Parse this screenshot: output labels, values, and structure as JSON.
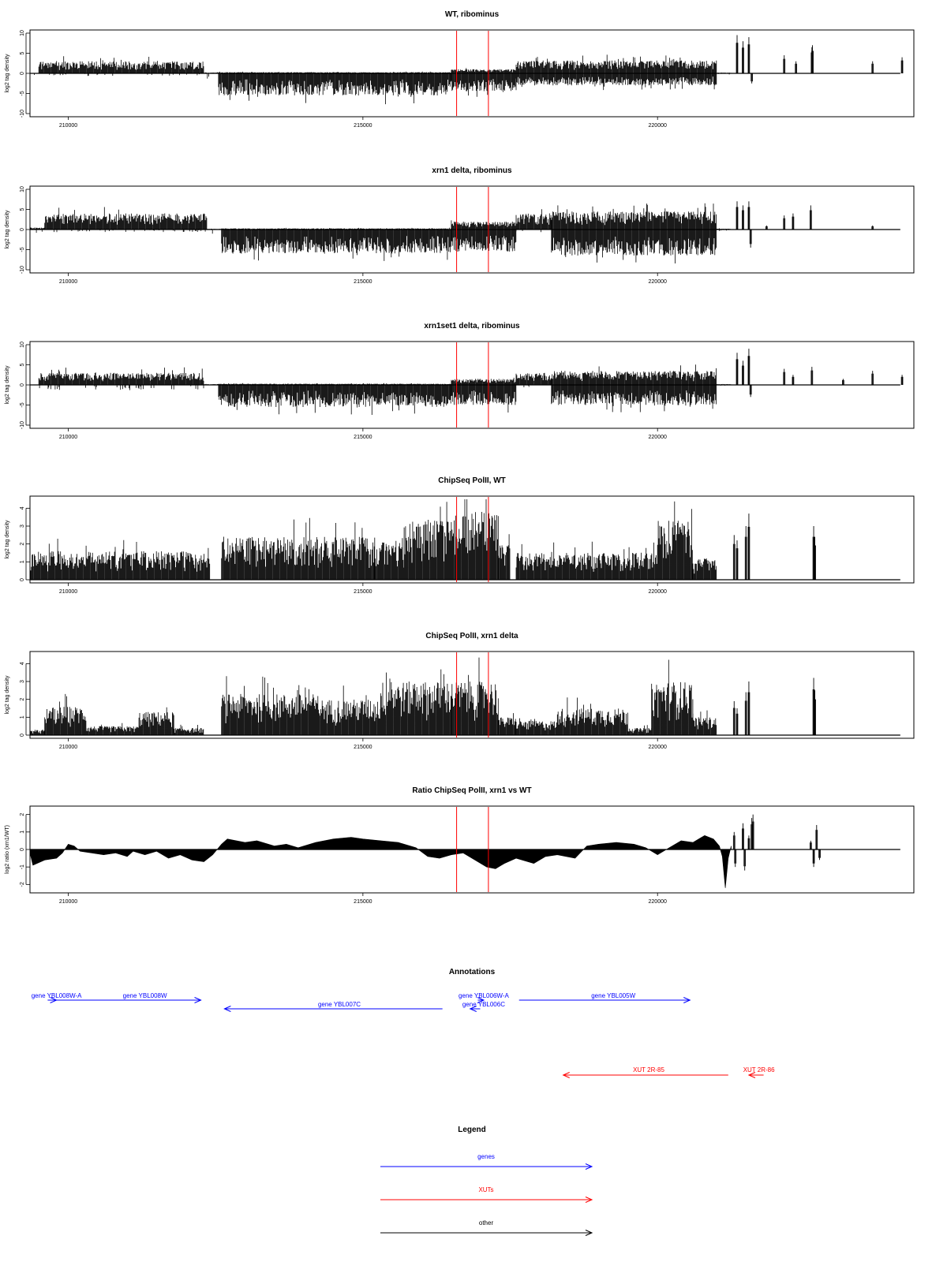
{
  "palette": {
    "gene": "#0000ff",
    "xut": "#ff0000",
    "other": "#000000",
    "marker": "#ff0000"
  },
  "chart_data": [
    {
      "type": "bar",
      "title": "WT, ribominus",
      "ylabel": "log2 tag density",
      "xlim": [
        209350,
        224350
      ],
      "ylim": [
        -10,
        10
      ],
      "yticks": [
        "-10",
        "-5",
        "0",
        "5",
        "10"
      ],
      "xticks": [
        "210000",
        "215000",
        "220000"
      ],
      "markers_x": [
        216590,
        217130
      ],
      "grid": false,
      "segments": [
        {
          "x": [
            209350,
            209500
          ],
          "pos": 0,
          "neg": 0.5
        },
        {
          "x": [
            209500,
            212300
          ],
          "pos": 3.0,
          "neg": 0.5
        },
        {
          "x": [
            212300,
            212550
          ],
          "pos": 0.2,
          "neg": 1.0
        },
        {
          "x": [
            212550,
            216500
          ],
          "pos": 0.3,
          "neg": -5.5
        },
        {
          "x": [
            216500,
            217600
          ],
          "pos": 1.0,
          "neg": -4.5
        },
        {
          "x": [
            217600,
            221000
          ],
          "pos": 3.2,
          "neg": -3.0
        },
        {
          "x": [
            221000,
            221250
          ],
          "pos": 0.2,
          "neg": 0.3
        }
      ],
      "peaks": [
        [
          221350,
          9.5
        ],
        [
          221450,
          8.0
        ],
        [
          221550,
          9.0
        ],
        [
          221600,
          -2.5
        ],
        [
          222150,
          4.5
        ],
        [
          222350,
          3.0
        ],
        [
          222620,
          6.5
        ],
        [
          222630,
          7.0
        ],
        [
          223650,
          3.0
        ],
        [
          224150,
          4.0
        ]
      ]
    },
    {
      "type": "bar",
      "title": "xrn1 delta, ribominus",
      "ylabel": "log2 tag density",
      "xlim": [
        209350,
        224350
      ],
      "ylim": [
        -10,
        10
      ],
      "yticks": [
        "-10",
        "-5",
        "0",
        "5",
        "10"
      ],
      "xticks": [
        "210000",
        "215000",
        "220000"
      ],
      "markers_x": [
        216590,
        217130
      ],
      "grid": false,
      "segments": [
        {
          "x": [
            209350,
            209600
          ],
          "pos": 0.5,
          "neg": 1.5
        },
        {
          "x": [
            209600,
            212350
          ],
          "pos": 4.0,
          "neg": 0.5
        },
        {
          "x": [
            212350,
            212600
          ],
          "pos": 0.2,
          "neg": 2.0
        },
        {
          "x": [
            212600,
            216500
          ],
          "pos": 0.3,
          "neg": -6.0
        },
        {
          "x": [
            216500,
            217600
          ],
          "pos": 2.0,
          "neg": -5.5
        },
        {
          "x": [
            217600,
            218200
          ],
          "pos": 4.0,
          "neg": 0.5
        },
        {
          "x": [
            218200,
            221000
          ],
          "pos": 4.5,
          "neg": -6.5
        },
        {
          "x": [
            221000,
            221250
          ],
          "pos": 0.2,
          "neg": 0.3
        }
      ],
      "peaks": [
        [
          221350,
          7.0
        ],
        [
          221450,
          6.0
        ],
        [
          221550,
          7.0
        ],
        [
          221580,
          -4.5
        ],
        [
          221850,
          1.0
        ],
        [
          222150,
          3.5
        ],
        [
          222300,
          4.0
        ],
        [
          222600,
          6.0
        ],
        [
          223650,
          1.0
        ]
      ]
    },
    {
      "type": "bar",
      "title": "xrn1set1 delta, ribominus",
      "ylabel": "log2 tag density",
      "xlim": [
        209350,
        224350
      ],
      "ylim": [
        -10,
        10
      ],
      "yticks": [
        "-10",
        "-5",
        "0",
        "5",
        "10"
      ],
      "xticks": [
        "210000",
        "215000",
        "220000"
      ],
      "markers_x": [
        216590,
        217130
      ],
      "grid": false,
      "segments": [
        {
          "x": [
            209350,
            209500
          ],
          "pos": 0,
          "neg": 0.3
        },
        {
          "x": [
            209500,
            212300
          ],
          "pos": 3.0,
          "neg": 1.0
        },
        {
          "x": [
            212300,
            212550
          ],
          "pos": 0.2,
          "neg": 1.0
        },
        {
          "x": [
            212550,
            216500
          ],
          "pos": 0.3,
          "neg": -5.5
        },
        {
          "x": [
            216500,
            217600
          ],
          "pos": 1.5,
          "neg": -5.0
        },
        {
          "x": [
            217600,
            218200
          ],
          "pos": 3.0,
          "neg": 0.5
        },
        {
          "x": [
            218200,
            221000
          ],
          "pos": 3.5,
          "neg": -5.0
        },
        {
          "x": [
            221000,
            221250
          ],
          "pos": 0.2,
          "neg": 0.3
        }
      ],
      "peaks": [
        [
          221350,
          8.0
        ],
        [
          221450,
          6.0
        ],
        [
          221550,
          9.0
        ],
        [
          221580,
          -3.0
        ],
        [
          222150,
          4.0
        ],
        [
          222300,
          2.5
        ],
        [
          222620,
          4.5
        ],
        [
          223150,
          1.5
        ],
        [
          223650,
          3.5
        ],
        [
          224150,
          2.5
        ]
      ]
    },
    {
      "type": "bar",
      "title": "ChipSeq PolII, WT",
      "ylabel": "log2 tag density",
      "xlim": [
        209350,
        224350
      ],
      "ylim": [
        0,
        4.5
      ],
      "yticks": [
        "0",
        "1",
        "2",
        "3",
        "4"
      ],
      "xticks": [
        "210000",
        "215000",
        "220000"
      ],
      "markers_x": [
        216590,
        217130
      ],
      "grid": false,
      "segments": [
        {
          "x": [
            209350,
            212400
          ],
          "pos": 1.6,
          "neg": 0
        },
        {
          "x": [
            212600,
            215200
          ],
          "pos": 2.4,
          "neg": 0
        },
        {
          "x": [
            215200,
            215700
          ],
          "pos": 2.2,
          "neg": 0
        },
        {
          "x": [
            215700,
            216500
          ],
          "pos": 3.3,
          "neg": 0
        },
        {
          "x": [
            216500,
            217300
          ],
          "pos": 3.8,
          "neg": 0
        },
        {
          "x": [
            217300,
            217500
          ],
          "pos": 2.0,
          "neg": 0
        },
        {
          "x": [
            217600,
            220000
          ],
          "pos": 1.5,
          "neg": 0
        },
        {
          "x": [
            220000,
            220600
          ],
          "pos": 3.3,
          "neg": 0
        },
        {
          "x": [
            220600,
            221000
          ],
          "pos": 1.2,
          "neg": 0
        }
      ],
      "peaks": [
        [
          221300,
          2.5
        ],
        [
          221350,
          2.2
        ],
        [
          221500,
          3.0
        ],
        [
          221550,
          3.7
        ],
        [
          222650,
          3.0
        ],
        [
          222670,
          2.4
        ]
      ]
    },
    {
      "type": "bar",
      "title": "ChipSeq PolII, xrn1 delta",
      "ylabel": "log2 tag density",
      "xlim": [
        209350,
        224350
      ],
      "ylim": [
        0,
        4.5
      ],
      "yticks": [
        "0",
        "1",
        "2",
        "3",
        "4"
      ],
      "xticks": [
        "210000",
        "215000",
        "220000"
      ],
      "markers_x": [
        216590,
        217130
      ],
      "grid": false,
      "segments": [
        {
          "x": [
            209350,
            209600
          ],
          "pos": 0.3,
          "neg": 0
        },
        {
          "x": [
            209600,
            210300
          ],
          "pos": 1.6,
          "neg": 0
        },
        {
          "x": [
            210300,
            211200
          ],
          "pos": 0.5,
          "neg": 0
        },
        {
          "x": [
            211200,
            211800
          ],
          "pos": 1.3,
          "neg": 0
        },
        {
          "x": [
            211800,
            212300
          ],
          "pos": 0.4,
          "neg": 0
        },
        {
          "x": [
            212600,
            214200
          ],
          "pos": 2.3,
          "neg": 0
        },
        {
          "x": [
            214200,
            215300
          ],
          "pos": 2.0,
          "neg": 0
        },
        {
          "x": [
            215300,
            216500
          ],
          "pos": 3.0,
          "neg": 0
        },
        {
          "x": [
            216500,
            217300
          ],
          "pos": 3.0,
          "neg": 0
        },
        {
          "x": [
            217300,
            217600
          ],
          "pos": 1.0,
          "neg": 0
        },
        {
          "x": [
            217600,
            218300
          ],
          "pos": 0.8,
          "neg": 0
        },
        {
          "x": [
            218300,
            219500
          ],
          "pos": 1.5,
          "neg": 0
        },
        {
          "x": [
            219500,
            219900
          ],
          "pos": 0.4,
          "neg": 0
        },
        {
          "x": [
            219900,
            220600
          ],
          "pos": 3.0,
          "neg": 0
        },
        {
          "x": [
            220600,
            221000
          ],
          "pos": 1.0,
          "neg": 0
        }
      ],
      "peaks": [
        [
          221300,
          1.9
        ],
        [
          221350,
          1.5
        ],
        [
          221500,
          2.4
        ],
        [
          221550,
          3.0
        ],
        [
          222650,
          3.2
        ],
        [
          222670,
          2.5
        ]
      ]
    },
    {
      "type": "area",
      "title": "Ratio ChipSeq PolII, xrn1 vs WT",
      "ylabel": "log2 ratio (xrn1/WT)",
      "xlim": [
        209350,
        224350
      ],
      "ylim": [
        -2.3,
        2.3
      ],
      "yticks": [
        "-2",
        "-1",
        "0",
        "1",
        "2"
      ],
      "xticks": [
        "210000",
        "215000",
        "220000"
      ],
      "markers_x": [
        216590,
        217130
      ],
      "grid": false,
      "points": [
        [
          209350,
          -0.2
        ],
        [
          209400,
          -0.9
        ],
        [
          209600,
          -0.6
        ],
        [
          209800,
          -0.5
        ],
        [
          209900,
          -0.2
        ],
        [
          210000,
          0.3
        ],
        [
          210100,
          0.2
        ],
        [
          210200,
          -0.1
        ],
        [
          210400,
          -0.2
        ],
        [
          210600,
          -0.3
        ],
        [
          210800,
          -0.2
        ],
        [
          211000,
          -0.4
        ],
        [
          211100,
          -0.1
        ],
        [
          211300,
          -0.3
        ],
        [
          211500,
          -0.1
        ],
        [
          211700,
          -0.5
        ],
        [
          211900,
          -0.3
        ],
        [
          212100,
          -0.6
        ],
        [
          212300,
          -0.7
        ],
        [
          212450,
          -0.3
        ],
        [
          212600,
          0.3
        ],
        [
          212700,
          0.6
        ],
        [
          213000,
          0.4
        ],
        [
          213200,
          0.5
        ],
        [
          213500,
          0.2
        ],
        [
          213700,
          0.3
        ],
        [
          213900,
          0.1
        ],
        [
          214200,
          0.4
        ],
        [
          214500,
          0.6
        ],
        [
          214800,
          0.7
        ],
        [
          215000,
          0.6
        ],
        [
          215300,
          0.5
        ],
        [
          215600,
          0.4
        ],
        [
          215900,
          0.1
        ],
        [
          216100,
          -0.4
        ],
        [
          216300,
          -0.5
        ],
        [
          216500,
          -0.3
        ],
        [
          216700,
          -0.2
        ],
        [
          216900,
          -0.6
        ],
        [
          217100,
          -1.0
        ],
        [
          217250,
          -1.1
        ],
        [
          217400,
          -0.8
        ],
        [
          217600,
          -0.5
        ],
        [
          217900,
          -0.8
        ],
        [
          218100,
          -0.4
        ],
        [
          218300,
          -0.3
        ],
        [
          218600,
          -0.5
        ],
        [
          218800,
          0.2
        ],
        [
          219000,
          0.3
        ],
        [
          219300,
          0.4
        ],
        [
          219600,
          0.3
        ],
        [
          219800,
          0.1
        ],
        [
          220000,
          -0.3
        ],
        [
          220200,
          0.1
        ],
        [
          220400,
          0.5
        ],
        [
          220600,
          0.4
        ],
        [
          220800,
          0.8
        ],
        [
          220950,
          0.6
        ],
        [
          221050,
          0.2
        ],
        [
          221100,
          -0.4
        ],
        [
          221150,
          -2.2
        ],
        [
          221200,
          -0.5
        ],
        [
          221250,
          0.2
        ]
      ],
      "peaks": [
        [
          221300,
          1.0
        ],
        [
          221320,
          -1.0
        ],
        [
          221450,
          1.5
        ],
        [
          221480,
          -1.2
        ],
        [
          221550,
          0.8
        ],
        [
          221600,
          1.8
        ],
        [
          221620,
          2.0
        ],
        [
          222600,
          0.5
        ],
        [
          222650,
          -1.0
        ],
        [
          222700,
          1.4
        ],
        [
          222750,
          -0.6
        ]
      ]
    }
  ],
  "annotations": {
    "title": "Annotations",
    "genes": [
      {
        "label": "gene YBL008W-A",
        "start": 209650,
        "end": 209800,
        "label_x": 209800,
        "row": 0,
        "dir": "right"
      },
      {
        "label": "gene YBL008W",
        "start": 209750,
        "end": 212250,
        "label_x": 211300,
        "row": 0,
        "dir": "right"
      },
      {
        "label": "gene YBL007C",
        "start": 212650,
        "end": 216350,
        "label_x": 214600,
        "row": 1,
        "dir": "left"
      },
      {
        "label": "gene YBL006W-A",
        "start": 216950,
        "end": 217050,
        "label_x": 217050,
        "row": 0,
        "dir": "right"
      },
      {
        "label": "gene YBL006C",
        "start": 216820,
        "end": 216990,
        "label_x": 217050,
        "row": 1,
        "dir": "left"
      },
      {
        "label": "gene YBL005W",
        "start": 217650,
        "end": 220550,
        "label_x": 219250,
        "row": 0,
        "dir": "right"
      }
    ],
    "xuts": [
      {
        "label": "XUT 2R-85",
        "start": 218400,
        "end": 221200,
        "label_x": 219850,
        "dir": "left"
      },
      {
        "label": "XUT 2R-86",
        "start": 221550,
        "end": 221800,
        "label_x": 221720,
        "dir": "left"
      }
    ]
  },
  "legend": {
    "title": "Legend",
    "items": [
      {
        "label": "genes",
        "color": "#0000ff"
      },
      {
        "label": "XUTs",
        "color": "#ff0000"
      },
      {
        "label": "other",
        "color": "#000000"
      }
    ]
  }
}
